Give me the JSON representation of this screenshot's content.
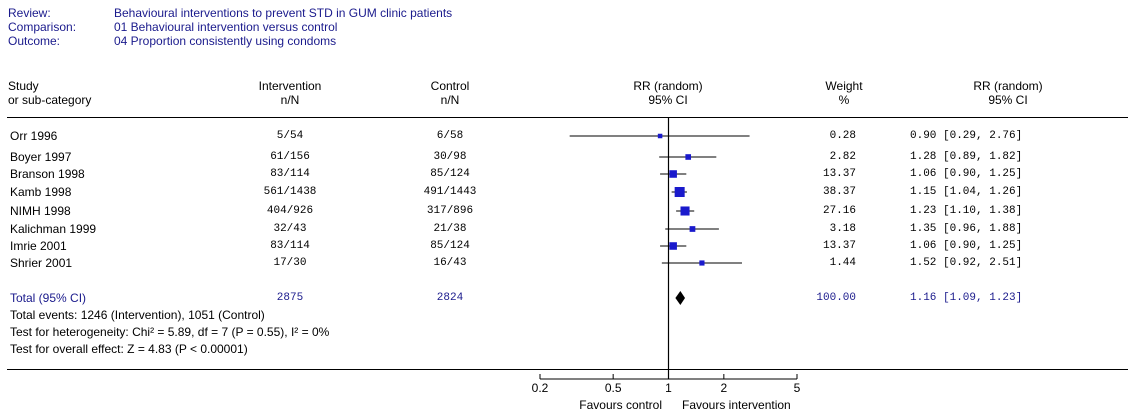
{
  "header": {
    "review_label": "Review:",
    "review_value": "Behavioural interventions to prevent STD in GUM clinic patients",
    "comparison_label": "Comparison:",
    "comparison_value": "01 Behavioural intervention versus control",
    "outcome_label": "Outcome:",
    "outcome_value": "04 Proportion consistently using condoms"
  },
  "columns": {
    "study_1": "Study",
    "study_2": "or sub-category",
    "intervention_1": "Intervention",
    "intervention_2": "n/N",
    "control_1": "Control",
    "control_2": "n/N",
    "rr_plot_1": "RR (random)",
    "rr_plot_2": "95% CI",
    "weight_1": "Weight",
    "weight_2": "%",
    "rr_text_1": "RR (random)",
    "rr_text_2": "95% CI"
  },
  "rows": [
    {
      "study": "Orr 1996",
      "intervention": "5/54",
      "control": "6/58",
      "weight": "0.28",
      "rr_text": "0.90 [0.29, 2.76]"
    },
    {
      "study": "Boyer 1997",
      "intervention": "61/156",
      "control": "30/98",
      "weight": "2.82",
      "rr_text": "1.28 [0.89, 1.82]"
    },
    {
      "study": "Branson 1998",
      "intervention": "83/114",
      "control": "85/124",
      "weight": "13.37",
      "rr_text": "1.06 [0.90, 1.25]"
    },
    {
      "study": "Kamb 1998",
      "intervention": "561/1438",
      "control": "491/1443",
      "weight": "38.37",
      "rr_text": "1.15 [1.04, 1.26]"
    },
    {
      "study": "NIMH 1998",
      "intervention": "404/926",
      "control": "317/896",
      "weight": "27.16",
      "rr_text": "1.23 [1.10, 1.38]"
    },
    {
      "study": "Kalichman 1999",
      "intervention": "32/43",
      "control": "21/38",
      "weight": "3.18",
      "rr_text": "1.35 [0.96, 1.88]"
    },
    {
      "study": "Imrie 2001",
      "intervention": "83/114",
      "control": "85/124",
      "weight": "13.37",
      "rr_text": "1.06 [0.90, 1.25]"
    },
    {
      "study": "Shrier 2001",
      "intervention": "17/30",
      "control": "16/43",
      "weight": "1.44",
      "rr_text": "1.52 [0.92, 2.51]"
    }
  ],
  "total": {
    "label": "Total (95% CI)",
    "intervention": "2875",
    "control": "2824",
    "weight": "100.00",
    "rr_text": "1.16 [1.09, 1.23]"
  },
  "footer": {
    "events": "Total events: 1246 (Intervention), 1051 (Control)",
    "heterogeneity": "Test for heterogeneity: Chi² = 5.89, df = 7 (P = 0.55), I² = 0%",
    "overall": "Test for overall effect: Z = 4.83 (P < 0.00001)"
  },
  "axis": {
    "favours_left": "Favours control",
    "favours_right": "Favours intervention"
  },
  "colors": {
    "header_text": "#1a1a8c",
    "marker": "#1a1acc",
    "diamond": "#000000"
  },
  "chart_data": {
    "type": "forest",
    "scale": "log",
    "xlim": [
      0.2,
      5
    ],
    "ticks": [
      0.2,
      0.5,
      1,
      2,
      5
    ],
    "tick_labels": [
      "0.2",
      "0.5",
      "1",
      "2",
      "5"
    ],
    "reference_line": 1,
    "studies": [
      {
        "name": "Orr 1996",
        "rr": 0.9,
        "lo": 0.29,
        "hi": 2.76,
        "weight": 0.28
      },
      {
        "name": "Boyer 1997",
        "rr": 1.28,
        "lo": 0.89,
        "hi": 1.82,
        "weight": 2.82
      },
      {
        "name": "Branson 1998",
        "rr": 1.06,
        "lo": 0.9,
        "hi": 1.25,
        "weight": 13.37
      },
      {
        "name": "Kamb 1998",
        "rr": 1.15,
        "lo": 1.04,
        "hi": 1.26,
        "weight": 38.37
      },
      {
        "name": "NIMH 1998",
        "rr": 1.23,
        "lo": 1.1,
        "hi": 1.38,
        "weight": 27.16
      },
      {
        "name": "Kalichman 1999",
        "rr": 1.35,
        "lo": 0.96,
        "hi": 1.88,
        "weight": 3.18
      },
      {
        "name": "Imrie 2001",
        "rr": 1.06,
        "lo": 0.9,
        "hi": 1.25,
        "weight": 13.37
      },
      {
        "name": "Shrier 2001",
        "rr": 1.52,
        "lo": 0.92,
        "hi": 2.51,
        "weight": 1.44
      }
    ],
    "pooled": {
      "rr": 1.16,
      "lo": 1.09,
      "hi": 1.23,
      "weight": 100.0
    }
  }
}
